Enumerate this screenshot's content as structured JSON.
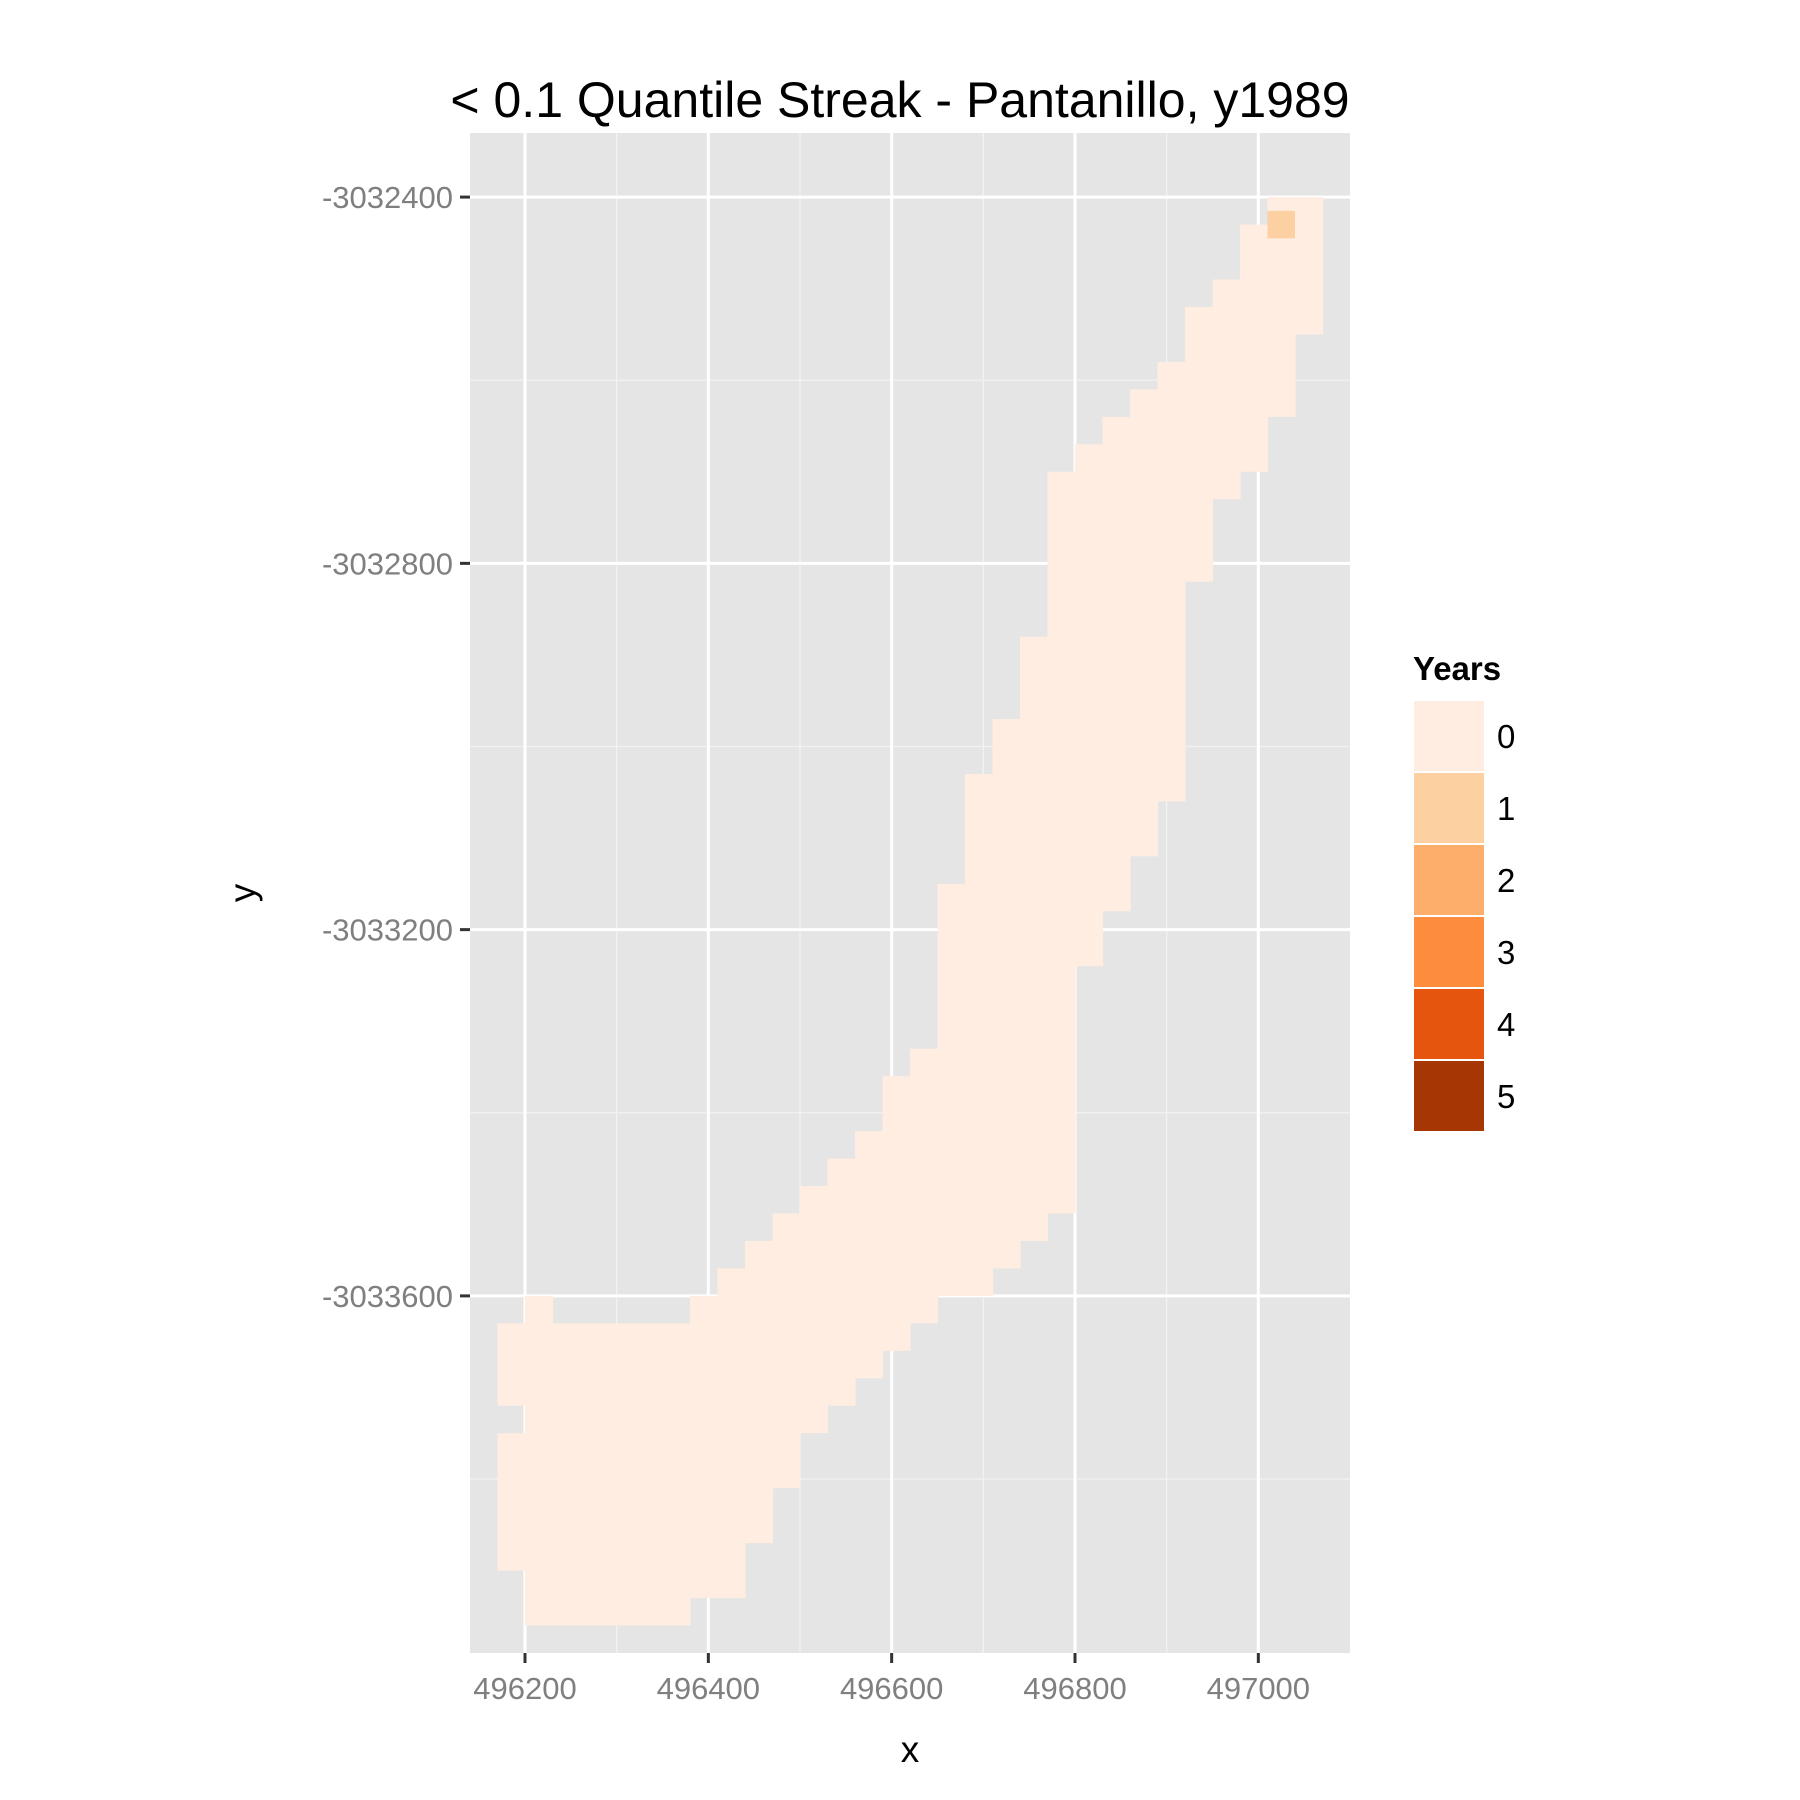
{
  "chart_data": {
    "type": "heatmap",
    "title": "< 0.1 Quantile Streak - Pantanillo, y1989",
    "xlabel": "x",
    "ylabel": "y",
    "xlim": [
      496140,
      497100
    ],
    "ylim": [
      -3033990,
      -3032330
    ],
    "x_ticks": [
      496200,
      496400,
      496600,
      496800,
      497000
    ],
    "x_tick_labels": [
      "496200",
      "496400",
      "496600",
      "496800",
      "497000"
    ],
    "y_ticks": [
      -3032400,
      -3032800,
      -3033200,
      -3033600
    ],
    "y_tick_labels": [
      "-3032400",
      "-3032800",
      "-3033200",
      "-3033600"
    ],
    "x_minor": [
      496300,
      496500,
      496700,
      496900
    ],
    "y_minor": [
      -3032600,
      -3033000,
      -3033400,
      -3033800
    ],
    "cell_size": 30,
    "legend": {
      "title": "Years",
      "position": "right",
      "entries": [
        {
          "label": "0",
          "color": "#feede0"
        },
        {
          "label": "1",
          "color": "#fdd0a2"
        },
        {
          "label": "2",
          "color": "#fdae6b"
        },
        {
          "label": "3",
          "color": "#fd8d3c"
        },
        {
          "label": "4",
          "color": "#e6550d"
        },
        {
          "label": "5",
          "color": "#a63603"
        }
      ]
    },
    "colors": {
      "panel_background": "#e5e5e5",
      "major_grid": "#ffffff",
      "minor_grid": "#f2f2f2",
      "tick": "#333333"
    },
    "columns": [
      {
        "x": 496185,
        "y_min": -3033885,
        "y_max": -3033765,
        "value": 0
      },
      {
        "x": 496185,
        "y_min": -3033705,
        "y_max": -3033645,
        "value": 0
      },
      {
        "x": 496215,
        "y_min": -3033945,
        "y_max": -3033615,
        "value": 0
      },
      {
        "x": 496245,
        "y_min": -3033945,
        "y_max": -3033645,
        "value": 0
      },
      {
        "x": 496275,
        "y_min": -3033945,
        "y_max": -3033645,
        "value": 0
      },
      {
        "x": 496305,
        "y_min": -3033945,
        "y_max": -3033645,
        "value": 0
      },
      {
        "x": 496335,
        "y_min": -3033945,
        "y_max": -3033645,
        "value": 0
      },
      {
        "x": 496365,
        "y_min": -3033945,
        "y_max": -3033645,
        "value": 0
      },
      {
        "x": 496395,
        "y_min": -3033915,
        "y_max": -3033615,
        "value": 0
      },
      {
        "x": 496425,
        "y_min": -3033915,
        "y_max": -3033585,
        "value": 0
      },
      {
        "x": 496455,
        "y_min": -3033855,
        "y_max": -3033555,
        "value": 0
      },
      {
        "x": 496485,
        "y_min": -3033795,
        "y_max": -3033525,
        "value": 0
      },
      {
        "x": 496515,
        "y_min": -3033735,
        "y_max": -3033495,
        "value": 0
      },
      {
        "x": 496545,
        "y_min": -3033705,
        "y_max": -3033465,
        "value": 0
      },
      {
        "x": 496575,
        "y_min": -3033675,
        "y_max": -3033435,
        "value": 0
      },
      {
        "x": 496605,
        "y_min": -3033645,
        "y_max": -3033375,
        "value": 0
      },
      {
        "x": 496635,
        "y_min": -3033615,
        "y_max": -3033345,
        "value": 0
      },
      {
        "x": 496665,
        "y_min": -3033585,
        "y_max": -3033165,
        "value": 0
      },
      {
        "x": 496695,
        "y_min": -3033585,
        "y_max": -3033045,
        "value": 0
      },
      {
        "x": 496725,
        "y_min": -3033555,
        "y_max": -3032985,
        "value": 0
      },
      {
        "x": 496755,
        "y_min": -3033525,
        "y_max": -3032895,
        "value": 0
      },
      {
        "x": 496785,
        "y_min": -3033495,
        "y_max": -3032715,
        "value": 0
      },
      {
        "x": 496815,
        "y_min": -3033225,
        "y_max": -3032685,
        "value": 0
      },
      {
        "x": 496845,
        "y_min": -3033165,
        "y_max": -3032655,
        "value": 0
      },
      {
        "x": 496875,
        "y_min": -3033105,
        "y_max": -3032625,
        "value": 0
      },
      {
        "x": 496905,
        "y_min": -3033045,
        "y_max": -3032595,
        "value": 0
      },
      {
        "x": 496935,
        "y_min": -3032805,
        "y_max": -3032535,
        "value": 0
      },
      {
        "x": 496965,
        "y_min": -3032715,
        "y_max": -3032505,
        "value": 0
      },
      {
        "x": 496995,
        "y_min": -3032685,
        "y_max": -3032445,
        "value": 0
      },
      {
        "x": 497025,
        "y_min": -3032625,
        "y_max": -3032415,
        "value": 0
      },
      {
        "x": 497055,
        "y_min": -3032535,
        "y_max": -3032415,
        "value": 0
      }
    ],
    "highlight_cells": [
      {
        "x": 497025,
        "y": -3032430,
        "value": 1
      }
    ]
  }
}
